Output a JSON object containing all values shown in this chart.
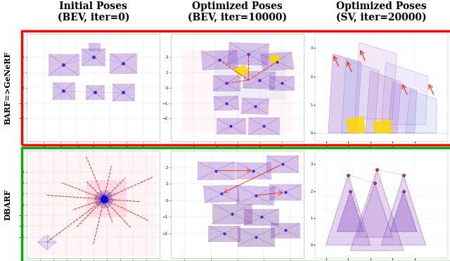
{
  "title_col1": "Initial Poses\n(BEV, iter=0)",
  "title_col2": "Optimized Poses\n(BEV, iter=10000)",
  "title_col3": "Optimized Poses\n(SV, iter=20000)",
  "label_row1": "BARF=>GeNeRF",
  "label_row2": "DBARF",
  "border_row1": "#FF0000",
  "border_row2": "#00AA00",
  "bg_color": "#FFFFFF",
  "cam_purple": "#9966CC",
  "cam_blue": "#8899EE",
  "cam_pink": "#CC88CC",
  "ray_color": "#FF2200",
  "yellow_color": "#FFD700",
  "title_fontsize": 10,
  "label_fontsize": 8,
  "fig_width": 6.4,
  "fig_height": 3.71
}
